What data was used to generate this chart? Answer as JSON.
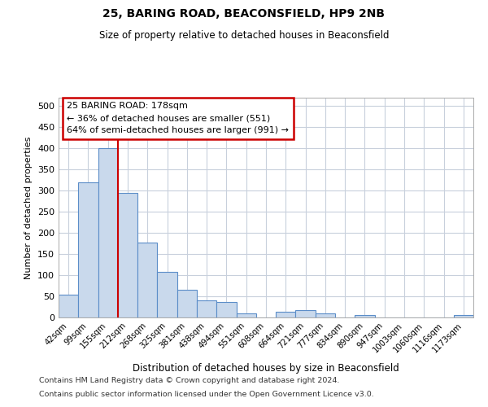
{
  "title1": "25, BARING ROAD, BEACONSFIELD, HP9 2NB",
  "title2": "Size of property relative to detached houses in Beaconsfield",
  "xlabel": "Distribution of detached houses by size in Beaconsfield",
  "ylabel": "Number of detached properties",
  "categories": [
    "42sqm",
    "99sqm",
    "155sqm",
    "212sqm",
    "268sqm",
    "325sqm",
    "381sqm",
    "438sqm",
    "494sqm",
    "551sqm",
    "608sqm",
    "664sqm",
    "721sqm",
    "777sqm",
    "834sqm",
    "890sqm",
    "947sqm",
    "1003sqm",
    "1060sqm",
    "1116sqm",
    "1173sqm"
  ],
  "values": [
    54,
    320,
    400,
    295,
    178,
    108,
    65,
    40,
    37,
    10,
    0,
    14,
    17,
    10,
    0,
    5,
    0,
    0,
    0,
    0,
    6
  ],
  "bar_color": "#c9d9ec",
  "bar_edge_color": "#5b8dc8",
  "marker_line_color": "#cc0000",
  "annotation_line1": "25 BARING ROAD: 178sqm",
  "annotation_line2": "← 36% of detached houses are smaller (551)",
  "annotation_line3": "64% of semi-detached houses are larger (991) →",
  "ylim": [
    0,
    520
  ],
  "yticks": [
    0,
    50,
    100,
    150,
    200,
    250,
    300,
    350,
    400,
    450,
    500
  ],
  "footer1": "Contains HM Land Registry data © Crown copyright and database right 2024.",
  "footer2": "Contains public sector information licensed under the Open Government Licence v3.0.",
  "bg_color": "#ffffff",
  "grid_color": "#c8d0dc"
}
